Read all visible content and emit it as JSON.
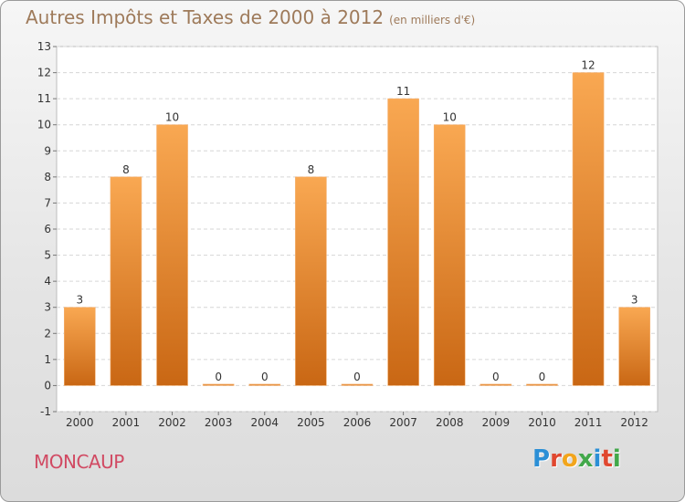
{
  "chart_data": {
    "type": "bar",
    "title": "Autres Impôts et Taxes de 2000 à 2012",
    "subtitle": "(en milliers d'€)",
    "categories": [
      "2000",
      "2001",
      "2002",
      "2003",
      "2004",
      "2005",
      "2006",
      "2007",
      "2008",
      "2009",
      "2010",
      "2011",
      "2012"
    ],
    "values": [
      3,
      8,
      10,
      0,
      0,
      8,
      0,
      11,
      10,
      0,
      0,
      12,
      3
    ],
    "ylim": [
      -1,
      13
    ],
    "yticks": [
      "-1",
      "0",
      "1",
      "2",
      "3",
      "4",
      "5",
      "6",
      "7",
      "8",
      "9",
      "10",
      "11",
      "12",
      "13"
    ],
    "grid": true,
    "bar_color": "#f0923a"
  },
  "footer": {
    "commune": "MONCAUP",
    "logo_letters": [
      "P",
      "r",
      "o",
      "x",
      "i",
      "t",
      "i"
    ],
    "logo_colors": [
      "#2b8fd6",
      "#e0472f",
      "#f2a51c",
      "#42a84a",
      "#2b8fd6",
      "#e0472f",
      "#42a84a"
    ]
  }
}
